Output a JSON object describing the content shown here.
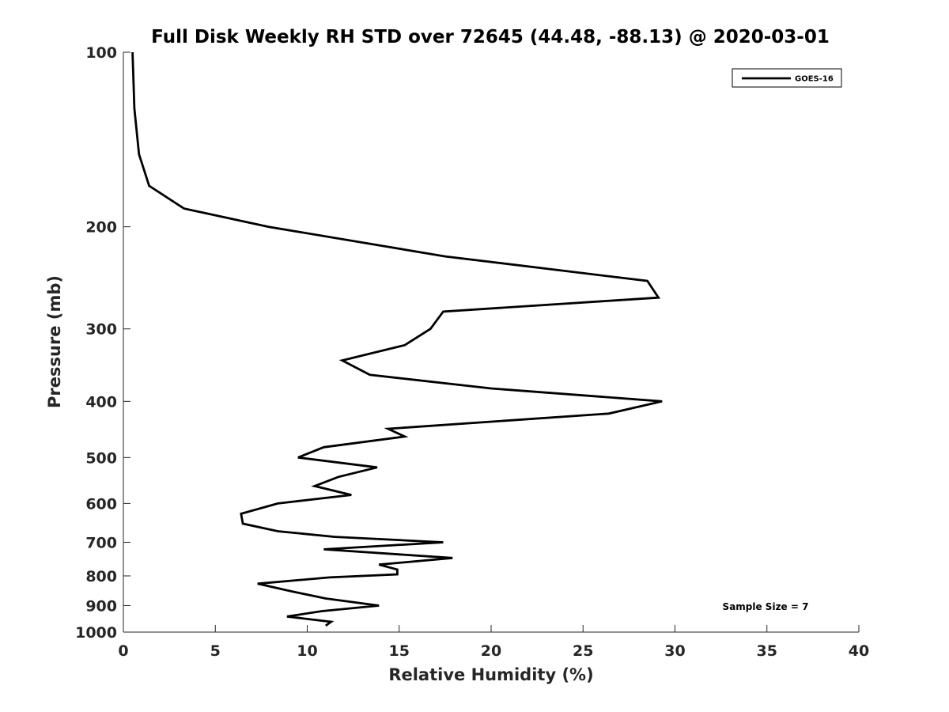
{
  "chart_data": {
    "type": "line",
    "title": "Full Disk Weekly RH STD over 72645 (44.48, -88.13) @ 2020-03-01",
    "xlabel": "Relative Humidity (%)",
    "ylabel": "Pressure (mb)",
    "xlim": [
      0,
      40
    ],
    "ylim": [
      100,
      1000
    ],
    "yscale": "log",
    "yreversed": true,
    "x_ticks": [
      "0",
      "5",
      "10",
      "15",
      "20",
      "25",
      "30",
      "35",
      "40"
    ],
    "y_ticks": [
      "100",
      "200",
      "300",
      "400",
      "500",
      "600",
      "700",
      "800",
      "900",
      "1000"
    ],
    "legend": {
      "position": "top-right",
      "entries": [
        "GOES-16"
      ]
    },
    "annotation": "Sample Size = 7",
    "series": [
      {
        "name": "GOES-16",
        "color": "#000000",
        "points": [
          [
            0.5,
            100
          ],
          [
            0.6,
            125
          ],
          [
            0.85,
            150
          ],
          [
            1.4,
            170
          ],
          [
            3.3,
            186
          ],
          [
            7.9,
            200
          ],
          [
            17.5,
            225
          ],
          [
            28.5,
            248
          ],
          [
            29.1,
            265
          ],
          [
            17.4,
            280
          ],
          [
            16.7,
            300
          ],
          [
            15.3,
            320
          ],
          [
            11.9,
            340
          ],
          [
            13.4,
            360
          ],
          [
            20.0,
            380
          ],
          [
            29.3,
            400
          ],
          [
            26.4,
            420
          ],
          [
            14.4,
            446
          ],
          [
            15.3,
            460
          ],
          [
            10.9,
            480
          ],
          [
            9.5,
            500
          ],
          [
            13.8,
            520
          ],
          [
            11.7,
            540
          ],
          [
            10.4,
            560
          ],
          [
            12.4,
            580
          ],
          [
            8.4,
            600
          ],
          [
            6.4,
            625
          ],
          [
            6.5,
            650
          ],
          [
            8.4,
            670
          ],
          [
            11.5,
            685
          ],
          [
            17.4,
            700
          ],
          [
            10.9,
            720
          ],
          [
            17.9,
            745
          ],
          [
            13.9,
            765
          ],
          [
            14.9,
            780
          ],
          [
            14.9,
            795
          ],
          [
            11.2,
            805
          ],
          [
            7.3,
            825
          ],
          [
            9.1,
            850
          ],
          [
            11.0,
            875
          ],
          [
            13.9,
            900
          ],
          [
            10.8,
            920
          ],
          [
            8.9,
            940
          ],
          [
            11.3,
            960
          ],
          [
            11.0,
            975
          ]
        ]
      }
    ]
  }
}
